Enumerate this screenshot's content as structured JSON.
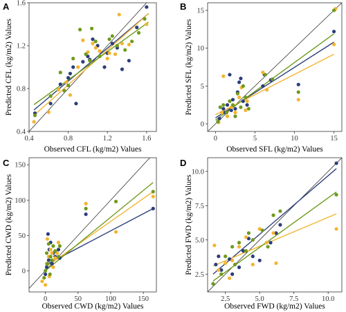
{
  "colors": {
    "navy": "#2c3e7a",
    "gold": "#f3b431",
    "green": "#6e9a1c",
    "line": "#333333"
  },
  "chart_data": [
    {
      "type": "scatter",
      "panel": "A",
      "xlabel": "Observed CFL (kg/m2) Values",
      "ylabel": "Predicted CFL (kg/m2) Values",
      "xlim": [
        0.4,
        1.7
      ],
      "ylim": [
        0.4,
        1.6
      ],
      "xticks": [
        0.4,
        0.8,
        1.2,
        1.6
      ],
      "yticks": [
        0.4,
        0.8,
        1.2,
        1.6
      ],
      "xtick_labels": [
        "0.4",
        "0.8",
        "1.2",
        "1.6"
      ],
      "ytick_labels": [
        "0.4",
        "0.8",
        "1.2",
        "1.6"
      ],
      "grid": false,
      "series": [
        {
          "color": "#2c3e7a",
          "points": [
            [
              0.46,
              0.57
            ],
            [
              0.62,
              0.66
            ],
            [
              0.72,
              0.84
            ],
            [
              0.8,
              0.9
            ],
            [
              0.82,
              0.94
            ],
            [
              0.85,
              1.0
            ],
            [
              0.88,
              0.66
            ],
            [
              0.95,
              1.05
            ],
            [
              1.0,
              1.1
            ],
            [
              1.02,
              1.07
            ],
            [
              1.05,
              1.26
            ],
            [
              1.1,
              1.2
            ],
            [
              1.17,
              1.0
            ],
            [
              1.2,
              1.13
            ],
            [
              1.25,
              1.22
            ],
            [
              1.3,
              1.18
            ],
            [
              1.35,
              0.98
            ],
            [
              1.42,
              1.06
            ],
            [
              1.5,
              1.37
            ],
            [
              1.6,
              1.56
            ]
          ],
          "fit": [
            [
              0.45,
              0.6
            ],
            [
              1.62,
              1.5
            ]
          ]
        },
        {
          "color": "#f3b431",
          "points": [
            [
              0.45,
              0.49
            ],
            [
              0.6,
              0.58
            ],
            [
              0.7,
              0.79
            ],
            [
              0.78,
              0.86
            ],
            [
              0.82,
              0.74
            ],
            [
              0.9,
              1.0
            ],
            [
              0.95,
              1.25
            ],
            [
              1.0,
              1.14
            ],
            [
              1.05,
              1.22
            ],
            [
              1.08,
              1.18
            ],
            [
              1.12,
              1.15
            ],
            [
              1.2,
              1.08
            ],
            [
              1.22,
              1.13
            ],
            [
              1.28,
              1.12
            ],
            [
              1.32,
              1.49
            ],
            [
              1.35,
              1.22
            ],
            [
              1.42,
              1.21
            ],
            [
              1.6,
              1.4
            ]
          ],
          "fit": [
            [
              0.45,
              0.55
            ],
            [
              1.62,
              1.5
            ]
          ]
        },
        {
          "color": "#6e9a1c",
          "points": [
            [
              0.46,
              0.55
            ],
            [
              0.62,
              0.73
            ],
            [
              0.72,
              0.95
            ],
            [
              0.76,
              0.78
            ],
            [
              0.8,
              0.83
            ],
            [
              0.85,
              1.08
            ],
            [
              0.92,
              1.35
            ],
            [
              0.98,
              1.12
            ],
            [
              1.02,
              1.06
            ],
            [
              1.04,
              1.36
            ],
            [
              1.08,
              1.24
            ],
            [
              1.12,
              1.1
            ],
            [
              1.22,
              1.26
            ],
            [
              1.25,
              1.29
            ],
            [
              1.3,
              1.2
            ],
            [
              1.38,
              1.16
            ],
            [
              1.45,
              1.24
            ],
            [
              1.52,
              1.32
            ],
            [
              1.58,
              1.45
            ]
          ],
          "fit": [
            [
              0.45,
              0.65
            ],
            [
              1.62,
              1.42
            ]
          ]
        }
      ]
    },
    {
      "type": "scatter",
      "panel": "B",
      "xlabel": "Observed SFL (kg/m2) Values",
      "ylabel": "Predicted SFL (kg/m2) Values",
      "xlim": [
        -1,
        16
      ],
      "ylim": [
        -1,
        16
      ],
      "xticks": [
        0,
        5,
        10,
        15
      ],
      "yticks": [
        0,
        5,
        10,
        15
      ],
      "xtick_labels": [
        "0",
        "5",
        "10",
        "15"
      ],
      "ytick_labels": [
        "0",
        "5",
        "10",
        "15"
      ],
      "grid": false,
      "series": [
        {
          "color": "#2c3e7a",
          "points": [
            [
              0.5,
              0.7
            ],
            [
              1.0,
              2.0
            ],
            [
              1.2,
              1.5
            ],
            [
              1.5,
              2.5
            ],
            [
              1.8,
              6.5
            ],
            [
              2.0,
              1.8
            ],
            [
              2.2,
              3.2
            ],
            [
              2.5,
              2.0
            ],
            [
              2.8,
              4.2
            ],
            [
              3.0,
              5.5
            ],
            [
              3.2,
              6.0
            ],
            [
              3.5,
              3.0
            ],
            [
              4.0,
              2.5
            ],
            [
              6.0,
              5.0
            ],
            [
              6.2,
              6.5
            ],
            [
              7.0,
              5.8
            ],
            [
              10.5,
              5.2
            ],
            [
              15.0,
              12.2
            ]
          ],
          "fit": [
            [
              0,
              0.8
            ],
            [
              15,
              10.8
            ]
          ]
        },
        {
          "color": "#f3b431",
          "points": [
            [
              0.4,
              0.2
            ],
            [
              0.8,
              1.5
            ],
            [
              1.0,
              6.3
            ],
            [
              1.5,
              1.0
            ],
            [
              2.0,
              2.2
            ],
            [
              2.5,
              1.5
            ],
            [
              3.0,
              3.5
            ],
            [
              3.3,
              4.8
            ],
            [
              3.8,
              1.8
            ],
            [
              4.0,
              3.0
            ],
            [
              6.0,
              6.8
            ],
            [
              6.5,
              4.5
            ],
            [
              10.5,
              3.2
            ],
            [
              15.0,
              10.5
            ],
            [
              15.2,
              15.2
            ]
          ],
          "fit": [
            [
              0,
              1.2
            ],
            [
              15,
              9.2
            ]
          ]
        },
        {
          "color": "#6e9a1c",
          "points": [
            [
              0.3,
              0.3
            ],
            [
              0.6,
              2.2
            ],
            [
              1.0,
              2.5
            ],
            [
              1.4,
              1.5
            ],
            [
              1.8,
              3.0
            ],
            [
              2.2,
              2.5
            ],
            [
              2.5,
              1.0
            ],
            [
              2.8,
              4.0
            ],
            [
              3.2,
              2.2
            ],
            [
              3.5,
              5.0
            ],
            [
              3.8,
              3.5
            ],
            [
              4.2,
              2.0
            ],
            [
              6.3,
              6.5
            ],
            [
              7.2,
              5.9
            ],
            [
              10.5,
              4.2
            ],
            [
              15.0,
              15.0
            ]
          ],
          "fit": [
            [
              0,
              0.5
            ],
            [
              15,
              11.9
            ]
          ]
        }
      ]
    },
    {
      "type": "scatter",
      "panel": "C",
      "xlabel": "Observed CWD (kg/m2) Values",
      "ylabel": "Predicted CWD (kg/m2) Values",
      "xlim": [
        -25,
        170
      ],
      "ylim": [
        -30,
        160
      ],
      "xticks": [
        0,
        50,
        100,
        150
      ],
      "yticks": [
        0,
        50,
        100,
        150
      ],
      "xtick_labels": [
        "0",
        "50",
        "100",
        "150"
      ],
      "ytick_labels": [
        "0",
        "50",
        "100",
        "150"
      ],
      "grid": false,
      "series": [
        {
          "color": "#2c3e7a",
          "points": [
            [
              0,
              -5
            ],
            [
              2,
              5
            ],
            [
              4,
              52
            ],
            [
              5,
              15
            ],
            [
              6,
              30
            ],
            [
              8,
              40
            ],
            [
              10,
              10
            ],
            [
              12,
              25
            ],
            [
              15,
              20
            ],
            [
              20,
              30
            ],
            [
              22,
              18
            ],
            [
              62,
              80
            ],
            [
              165,
              88
            ]
          ],
          "fit": [
            [
              0,
              8
            ],
            [
              165,
              88
            ]
          ]
        },
        {
          "color": "#f3b431",
          "points": [
            [
              -5,
              -15
            ],
            [
              0,
              -20
            ],
            [
              2,
              10
            ],
            [
              3,
              45
            ],
            [
              5,
              20
            ],
            [
              6,
              -8
            ],
            [
              8,
              30
            ],
            [
              10,
              25
            ],
            [
              12,
              5
            ],
            [
              15,
              18
            ],
            [
              18,
              25
            ],
            [
              20,
              40
            ],
            [
              62,
              95
            ],
            [
              108,
              55
            ],
            [
              165,
              105
            ]
          ],
          "fit": [
            [
              0,
              5
            ],
            [
              165,
              112
            ]
          ]
        },
        {
          "color": "#6e9a1c",
          "points": [
            [
              -2,
              -10
            ],
            [
              0,
              0
            ],
            [
              2,
              25
            ],
            [
              3,
              10
            ],
            [
              5,
              38
            ],
            [
              7,
              -5
            ],
            [
              8,
              20
            ],
            [
              10,
              15
            ],
            [
              12,
              35
            ],
            [
              15,
              28
            ],
            [
              20,
              20
            ],
            [
              22,
              35
            ],
            [
              62,
              88
            ],
            [
              108,
              98
            ],
            [
              165,
              112
            ]
          ],
          "fit": [
            [
              0,
              0
            ],
            [
              165,
              125
            ]
          ]
        }
      ]
    },
    {
      "type": "scatter",
      "panel": "D",
      "xlabel": "Observed FWD (kg/m2) Values",
      "ylabel": "Predicted FWD (kg/m2) Values",
      "xlim": [
        1.2,
        11.0
      ],
      "ylim": [
        1.2,
        11.0
      ],
      "xticks": [
        2.5,
        5.0,
        7.5,
        10.0
      ],
      "yticks": [
        2.5,
        5.0,
        7.5,
        10.0
      ],
      "xtick_labels": [
        "2.5",
        "5.0",
        "7.5",
        "10.0"
      ],
      "ytick_labels": [
        "2.5",
        "5.0",
        "7.5",
        "10.0"
      ],
      "grid": false,
      "series": [
        {
          "color": "#2c3e7a",
          "points": [
            [
              1.8,
              3.2
            ],
            [
              2.0,
              3.8
            ],
            [
              2.2,
              2.8
            ],
            [
              2.8,
              3.6
            ],
            [
              3.0,
              2.5
            ],
            [
              3.5,
              3.0
            ],
            [
              3.8,
              4.2
            ],
            [
              4.2,
              5.1
            ],
            [
              4.5,
              3.8
            ],
            [
              5.0,
              3.5
            ],
            [
              5.8,
              4.8
            ],
            [
              6.2,
              5.5
            ],
            [
              6.5,
              6.1
            ],
            [
              10.6,
              10.6
            ]
          ],
          "fit": [
            [
              1.6,
              2.5
            ],
            [
              10.6,
              10.2
            ]
          ]
        },
        {
          "color": "#f3b431",
          "points": [
            [
              1.7,
              4.6
            ],
            [
              2.0,
              2.8
            ],
            [
              2.5,
              3.3
            ],
            [
              2.8,
              2.2
            ],
            [
              3.0,
              3.5
            ],
            [
              3.5,
              4.5
            ],
            [
              4.0,
              5.2
            ],
            [
              4.5,
              3.2
            ],
            [
              5.0,
              5.8
            ],
            [
              5.5,
              4.8
            ],
            [
              6.0,
              5.5
            ],
            [
              6.2,
              3.3
            ],
            [
              10.6,
              5.8
            ]
          ],
          "fit": [
            [
              1.6,
              3.1
            ],
            [
              10.6,
              6.9
            ]
          ]
        },
        {
          "color": "#6e9a1c",
          "points": [
            [
              1.6,
              1.8
            ],
            [
              2.2,
              2.5
            ],
            [
              2.5,
              3.8
            ],
            [
              3.0,
              4.5
            ],
            [
              3.2,
              3.2
            ],
            [
              3.5,
              4.8
            ],
            [
              4.0,
              4.2
            ],
            [
              4.2,
              5.5
            ],
            [
              4.5,
              5.0
            ],
            [
              5.2,
              5.7
            ],
            [
              5.6,
              4.5
            ],
            [
              6.0,
              6.8
            ],
            [
              6.5,
              7.1
            ],
            [
              10.6,
              8.3
            ]
          ],
          "fit": [
            [
              1.6,
              2.0
            ],
            [
              10.6,
              8.5
            ]
          ]
        }
      ]
    }
  ]
}
